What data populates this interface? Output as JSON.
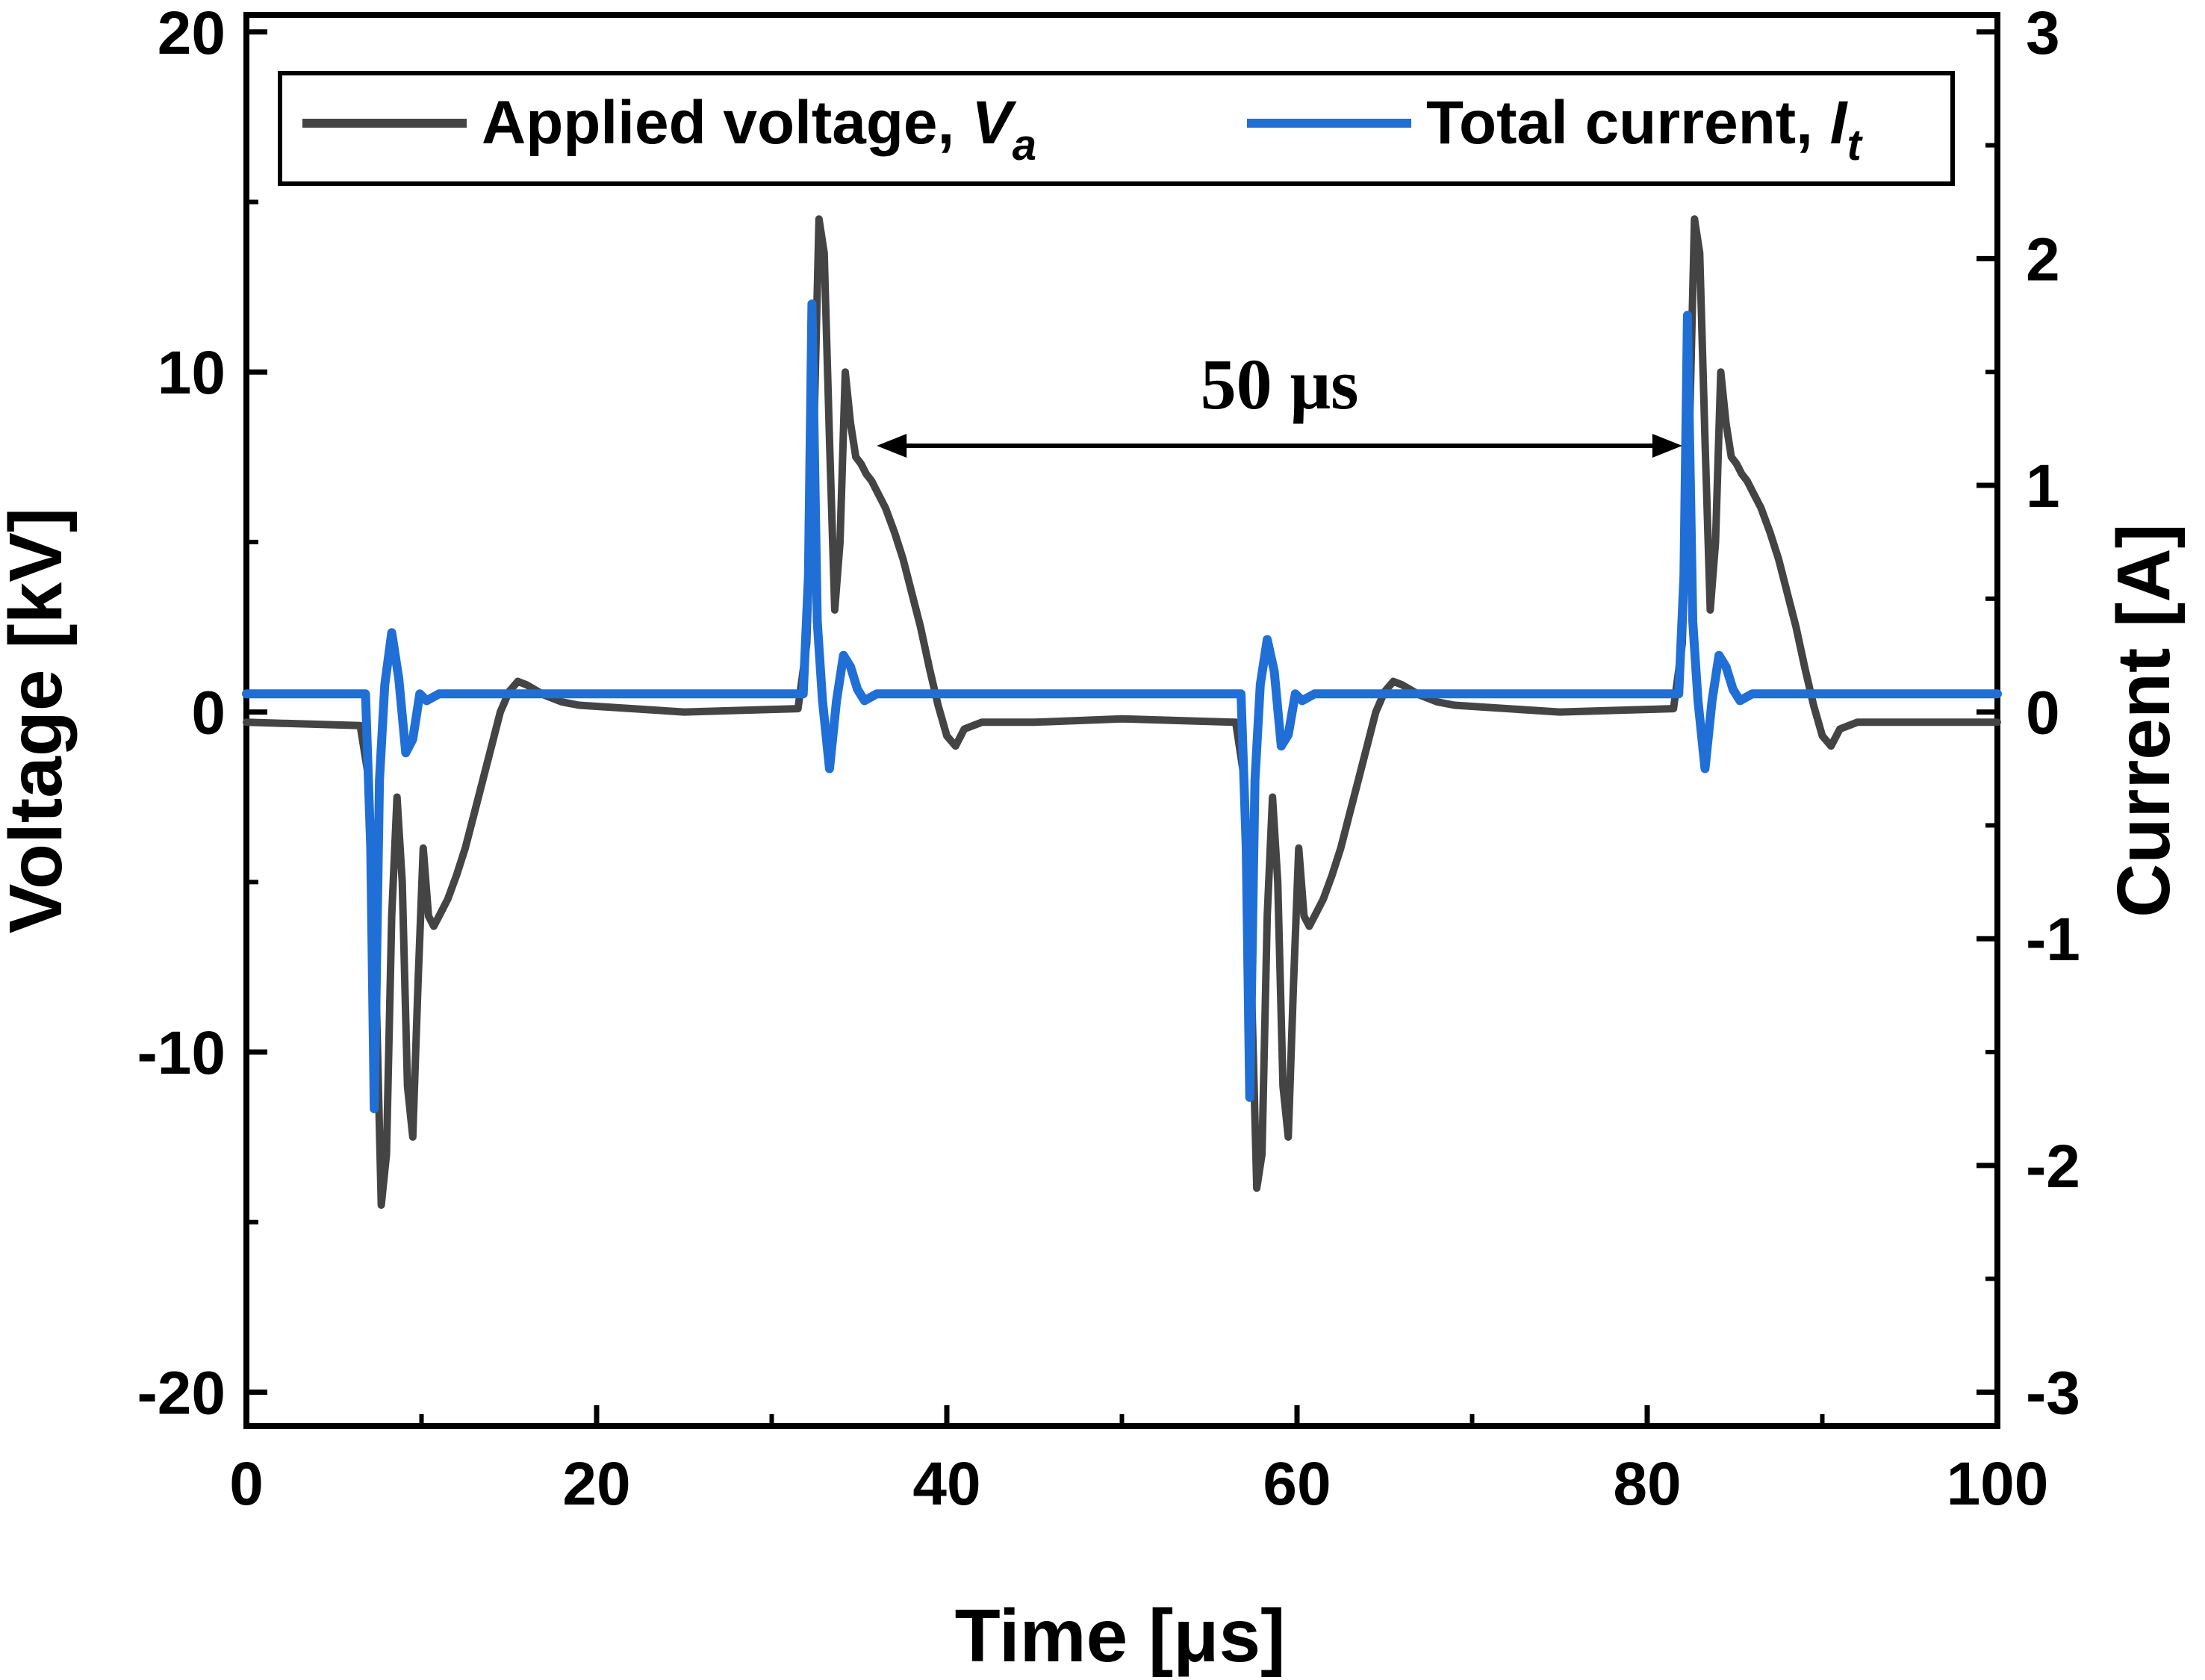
{
  "chart_data": {
    "type": "line",
    "xlabel": "Time [μs]",
    "ylabel_left": "Voltage [kV]",
    "ylabel_right": "Current [A]",
    "xlim": [
      0,
      100
    ],
    "ylim_left": [
      -21,
      20.5
    ],
    "ylim_right": [
      -3.15,
      3.075
    ],
    "x_ticks": [
      "0",
      "20",
      "40",
      "60",
      "80",
      "100"
    ],
    "y_ticks_left": [
      "20",
      "10",
      "0",
      "-10",
      "-20"
    ],
    "y_ticks_right": [
      "3",
      "2",
      "1",
      "0",
      "-1",
      "-2",
      "-3"
    ],
    "grid": false,
    "legend": {
      "placement": "top",
      "entries": [
        {
          "label": "Applied voltage, ",
          "symbol": "V",
          "sub": "a"
        },
        {
          "label": "Total current, ",
          "symbol": "I",
          "sub": "t"
        }
      ]
    },
    "annotation": {
      "text": "50 μs",
      "x_start": 36,
      "x_end": 82
    },
    "series": [
      {
        "name": "Applied voltage, Va",
        "axis": "left",
        "color": "#444444",
        "x": [
          0,
          6.5,
          7.0,
          7.4,
          7.7,
          8.0,
          8.3,
          8.6,
          8.9,
          9.2,
          9.5,
          9.8,
          10.1,
          10.4,
          10.7,
          11.0,
          11.5,
          12.0,
          12.5,
          13.0,
          13.5,
          14.0,
          14.5,
          15.0,
          15.5,
          16.0,
          17.0,
          18.0,
          19.0,
          25.0,
          31.5,
          32.0,
          32.4,
          32.7,
          33.0,
          33.3,
          33.6,
          33.9,
          34.2,
          34.5,
          34.8,
          35.1,
          35.4,
          35.7,
          36.0,
          36.5,
          37.0,
          37.5,
          38.0,
          38.5,
          39.0,
          39.5,
          40.0,
          40.5,
          41.0,
          41.5,
          42.0,
          45.0,
          50.0,
          56.5,
          57.0,
          57.4,
          57.7,
          58.0,
          58.3,
          58.6,
          58.9,
          59.2,
          59.5,
          59.8,
          60.1,
          60.4,
          60.7,
          61.0,
          61.5,
          62.0,
          62.5,
          63.0,
          63.5,
          64.0,
          64.5,
          65.0,
          65.5,
          66.0,
          67.0,
          68.0,
          69.0,
          75.0,
          81.5,
          82.0,
          82.4,
          82.7,
          83.0,
          83.3,
          83.6,
          83.9,
          84.2,
          84.5,
          84.8,
          85.1,
          85.4,
          85.7,
          86.0,
          86.5,
          87.0,
          87.5,
          88.0,
          88.5,
          89.0,
          89.5,
          90.0,
          90.5,
          91.0,
          91.5,
          92.0,
          95.0,
          100.0
        ],
        "values": [
          -0.3,
          -0.4,
          -2.0,
          -8.0,
          -14.5,
          -13.0,
          -6.0,
          -2.5,
          -5.0,
          -11.0,
          -12.5,
          -8.0,
          -4.0,
          -6.0,
          -6.3,
          -6.0,
          -5.5,
          -4.8,
          -4.0,
          -3.0,
          -2.0,
          -1.0,
          0.0,
          0.6,
          0.9,
          0.8,
          0.5,
          0.3,
          0.2,
          0.0,
          0.1,
          2.0,
          8.0,
          14.5,
          13.5,
          8.0,
          3.0,
          5.0,
          10.0,
          8.5,
          7.5,
          7.3,
          7.0,
          6.8,
          6.5,
          6.0,
          5.3,
          4.5,
          3.5,
          2.5,
          1.3,
          0.2,
          -0.7,
          -1.0,
          -0.5,
          -0.4,
          -0.3,
          -0.3,
          -0.2,
          -0.3,
          -2.0,
          -8.0,
          -14.0,
          -13.0,
          -6.0,
          -2.5,
          -5.0,
          -11.0,
          -12.5,
          -8.0,
          -4.0,
          -6.0,
          -6.3,
          -6.0,
          -5.5,
          -4.8,
          -4.0,
          -3.0,
          -2.0,
          -1.0,
          0.0,
          0.6,
          0.9,
          0.8,
          0.5,
          0.3,
          0.2,
          0.0,
          0.1,
          2.0,
          8.0,
          14.5,
          13.5,
          8.0,
          3.0,
          5.0,
          10.0,
          8.5,
          7.5,
          7.3,
          7.0,
          6.8,
          6.5,
          6.0,
          5.3,
          4.5,
          3.5,
          2.5,
          1.3,
          0.2,
          -0.7,
          -1.0,
          -0.5,
          -0.4,
          -0.3,
          -0.3,
          -0.3
        ]
      },
      {
        "name": "Total current, It",
        "axis": "right",
        "color": "#1f6fd6",
        "x": [
          0,
          6.8,
          7.1,
          7.3,
          7.6,
          7.9,
          8.3,
          8.7,
          9.1,
          9.5,
          9.9,
          10.3,
          11.0,
          31.8,
          32.1,
          32.3,
          32.6,
          32.9,
          33.3,
          33.7,
          34.1,
          34.5,
          34.9,
          35.3,
          36.0,
          56.8,
          57.1,
          57.3,
          57.6,
          57.9,
          58.3,
          58.7,
          59.1,
          59.5,
          59.9,
          60.3,
          61.0,
          81.8,
          82.1,
          82.3,
          82.6,
          82.9,
          83.3,
          83.7,
          84.1,
          84.5,
          84.9,
          85.3,
          86.0,
          100.0
        ],
        "values": [
          0.08,
          0.08,
          -0.6,
          -1.75,
          -0.3,
          0.12,
          0.35,
          0.15,
          -0.18,
          -0.12,
          0.08,
          0.05,
          0.08,
          0.08,
          0.6,
          1.8,
          0.4,
          0.05,
          -0.25,
          0.05,
          0.25,
          0.2,
          0.1,
          0.05,
          0.08,
          0.08,
          -0.6,
          -1.7,
          -0.3,
          0.12,
          0.32,
          0.18,
          -0.15,
          -0.1,
          0.08,
          0.05,
          0.08,
          0.08,
          0.6,
          1.75,
          0.4,
          0.05,
          -0.25,
          0.05,
          0.25,
          0.2,
          0.1,
          0.05,
          0.08,
          0.08
        ]
      }
    ]
  }
}
